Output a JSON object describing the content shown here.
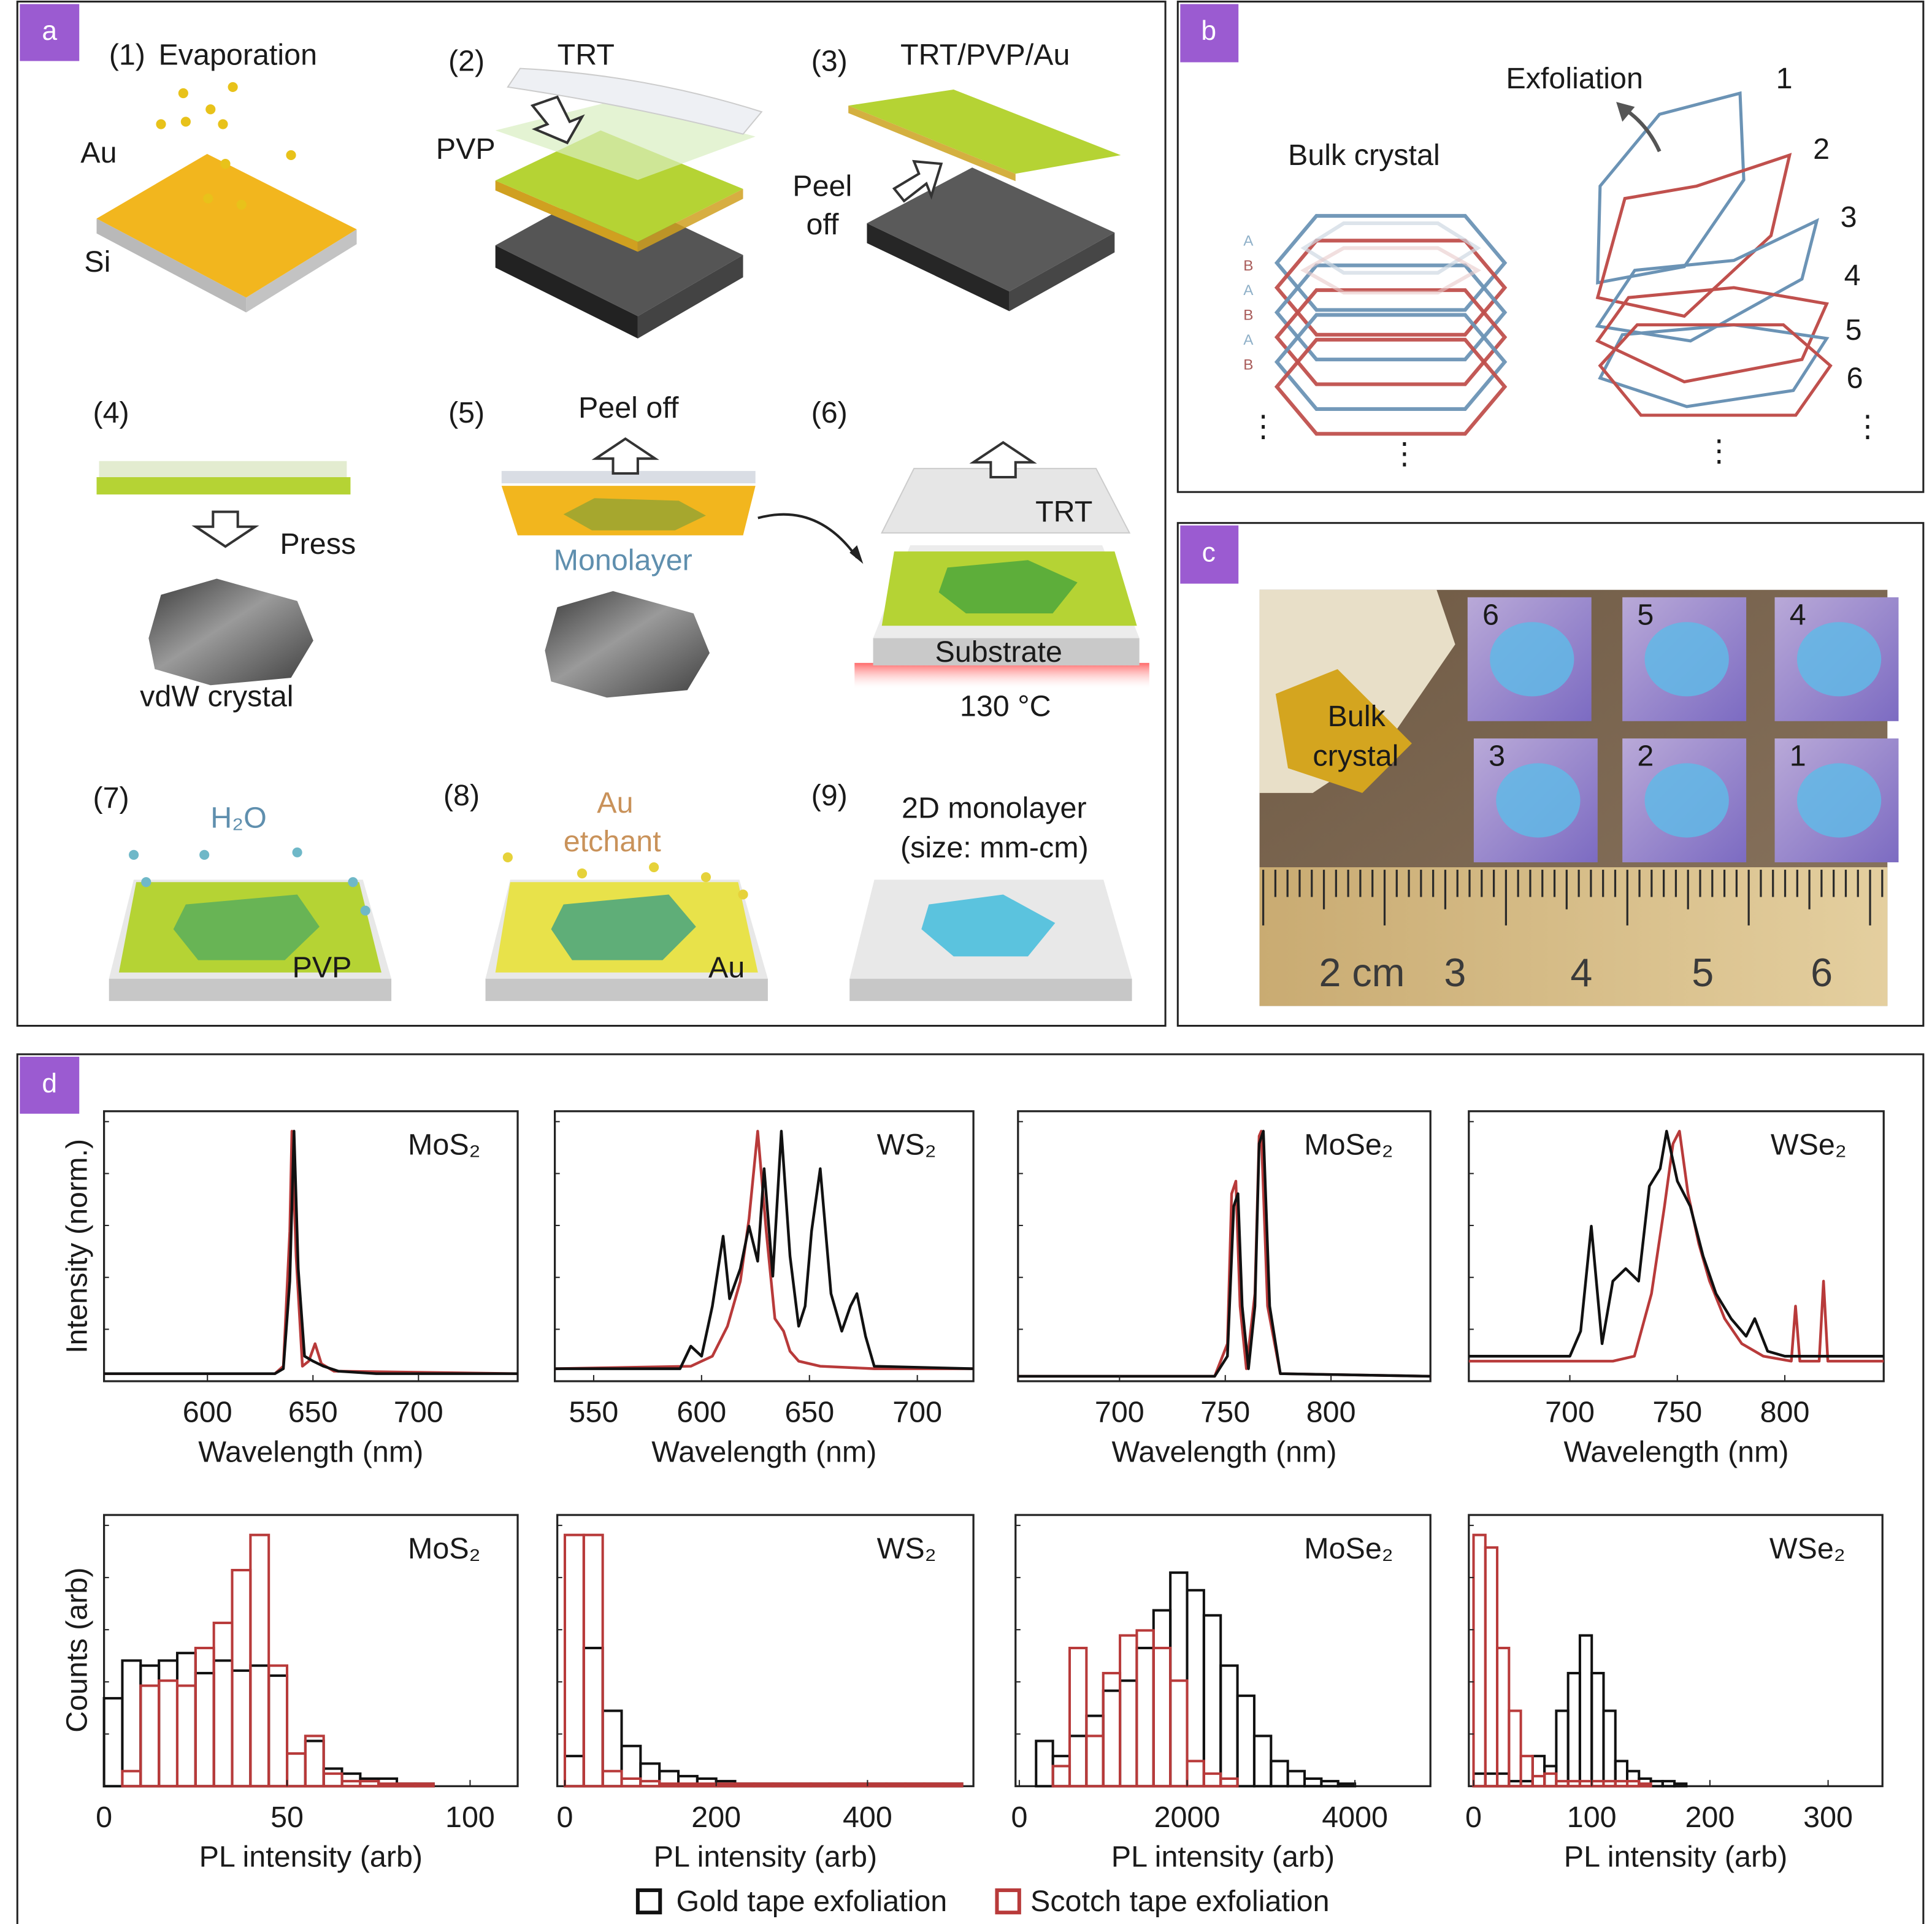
{
  "colors": {
    "panel_label_bg": "#9b5bd1",
    "gold_series": "#111111",
    "scotch_series": "#b83a3a",
    "au": "#f2b61e",
    "pvp": "#b5d334",
    "monolayer": "#5bc3de",
    "layer_a": "#6b93b5",
    "layer_b": "#c0504d"
  },
  "panel_a": {
    "label": "a",
    "steps": [
      {
        "num": "(1)",
        "title": "Evaporation",
        "labels": [
          "Au",
          "Si"
        ]
      },
      {
        "num": "(2)",
        "title": "TRT",
        "labels": [
          "PVP"
        ]
      },
      {
        "num": "(3)",
        "title": "TRT/PVP/Au",
        "labels": [
          "Peel",
          "off"
        ]
      },
      {
        "num": "(4)",
        "title": "",
        "labels": [
          "Press",
          "vdW crystal"
        ]
      },
      {
        "num": "(5)",
        "title": "Peel off",
        "labels": [
          "Monolayer"
        ]
      },
      {
        "num": "(6)",
        "title": "",
        "labels": [
          "TRT",
          "Substrate",
          "130 °C"
        ]
      },
      {
        "num": "(7)",
        "title": "H₂O",
        "labels": [
          "PVP"
        ]
      },
      {
        "num": "(8)",
        "title": "Au",
        "labels": [
          "etchant",
          "Au"
        ]
      },
      {
        "num": "(9)",
        "title": "2D monolayer",
        "labels": [
          "(size: mm-cm)"
        ]
      }
    ]
  },
  "panel_b": {
    "label": "b",
    "bulk_title": "Bulk crystal",
    "exfoliation_title": "Exfoliation",
    "stacking": [
      "A",
      "B",
      "A",
      "B",
      "A",
      "B"
    ],
    "layer_numbers": [
      "1",
      "2",
      "3",
      "4",
      "5",
      "6"
    ],
    "ellipsis": "⋮"
  },
  "panel_c": {
    "label": "c",
    "bulk_label": [
      "Bulk",
      "crystal"
    ],
    "sample_numbers": [
      "6",
      "5",
      "4",
      "3",
      "2",
      "1"
    ],
    "ruler_labels": [
      "2 cm",
      "3",
      "4",
      "5",
      "6"
    ]
  },
  "panel_d": {
    "label": "d",
    "legend": [
      {
        "name": "Gold tape exfoliation",
        "color": "#111111"
      },
      {
        "name": "Scotch tape exfoliation",
        "color": "#b83a3a"
      }
    ]
  },
  "chart_data": [
    {
      "type": "line",
      "title": "MoS₂",
      "xlabel": "Wavelength (nm)",
      "ylabel": "Intensity (norm.)",
      "xlim": [
        551,
        747
      ],
      "ylim": [
        0,
        1.05
      ],
      "xticks": [
        600,
        650,
        700
      ],
      "series": [
        {
          "name": "Gold tape exfoliation",
          "x": [
            551,
            600,
            632,
            636,
            639,
            641,
            643,
            646,
            650,
            655,
            662,
            680,
            747
          ],
          "y": [
            0.03,
            0.03,
            0.03,
            0.05,
            0.4,
            1.0,
            0.45,
            0.1,
            0.08,
            0.06,
            0.04,
            0.03,
            0.03
          ]
        },
        {
          "name": "Scotch tape exfoliation",
          "x": [
            551,
            600,
            632,
            636,
            639,
            640,
            642,
            645,
            648,
            651,
            654,
            660,
            747
          ],
          "y": [
            0.03,
            0.03,
            0.03,
            0.06,
            0.6,
            1.0,
            0.5,
            0.06,
            0.08,
            0.15,
            0.07,
            0.04,
            0.03
          ]
        }
      ]
    },
    {
      "type": "line",
      "title": "WS₂",
      "xlabel": "Wavelength (nm)",
      "xlim": [
        532,
        726
      ],
      "ylim": [
        0,
        1.05
      ],
      "xticks": [
        550,
        600,
        650,
        700
      ],
      "series": [
        {
          "name": "Gold tape exfoliation",
          "x": [
            532,
            590,
            595,
            600,
            605,
            610,
            613,
            618,
            622,
            626,
            629,
            633,
            637,
            641,
            645,
            648,
            651,
            655,
            660,
            665,
            669,
            672,
            676,
            680,
            726
          ],
          "y": [
            0.05,
            0.05,
            0.14,
            0.1,
            0.3,
            0.58,
            0.33,
            0.45,
            0.62,
            0.48,
            0.85,
            0.42,
            1.0,
            0.5,
            0.22,
            0.3,
            0.6,
            0.85,
            0.35,
            0.2,
            0.3,
            0.35,
            0.18,
            0.06,
            0.05
          ]
        },
        {
          "name": "Scotch tape exfoliation",
          "x": [
            532,
            595,
            605,
            612,
            618,
            622,
            626,
            630,
            634,
            638,
            641,
            645,
            655,
            680,
            726
          ],
          "y": [
            0.05,
            0.06,
            0.1,
            0.22,
            0.4,
            0.65,
            1.0,
            0.6,
            0.25,
            0.2,
            0.12,
            0.08,
            0.06,
            0.05,
            0.05
          ]
        }
      ]
    },
    {
      "type": "line",
      "title": "MoSe₂",
      "xlabel": "Wavelength (nm)",
      "xlim": [
        652,
        847
      ],
      "ylim": [
        0,
        1.05
      ],
      "xticks": [
        700,
        750,
        800
      ],
      "series": [
        {
          "name": "Gold tape exfoliation",
          "x": [
            652,
            745,
            751,
            754,
            756,
            758,
            761,
            764,
            766,
            768,
            771,
            776,
            847
          ],
          "y": [
            0.02,
            0.02,
            0.1,
            0.7,
            0.75,
            0.3,
            0.05,
            0.3,
            0.95,
            1.0,
            0.3,
            0.03,
            0.02
          ]
        },
        {
          "name": "Scotch tape exfoliation",
          "x": [
            652,
            745,
            751,
            753,
            755,
            757,
            760,
            764,
            766,
            767,
            770,
            776,
            847
          ],
          "y": [
            0.02,
            0.02,
            0.15,
            0.75,
            0.8,
            0.3,
            0.05,
            0.35,
            0.98,
            1.0,
            0.3,
            0.03,
            0.02
          ]
        }
      ]
    },
    {
      "type": "line",
      "title": "WSe₂",
      "xlabel": "Wavelength (nm)",
      "xlim": [
        653,
        846
      ],
      "ylim": [
        0,
        1.05
      ],
      "xticks": [
        700,
        750,
        800
      ],
      "series": [
        {
          "name": "Gold tape exfoliation",
          "x": [
            653,
            700,
            705,
            710,
            715,
            720,
            726,
            732,
            737,
            742,
            745,
            750,
            756,
            762,
            768,
            775,
            782,
            786,
            792,
            800,
            846
          ],
          "y": [
            0.1,
            0.1,
            0.2,
            0.62,
            0.15,
            0.4,
            0.45,
            0.4,
            0.78,
            0.85,
            1.0,
            0.8,
            0.7,
            0.5,
            0.35,
            0.25,
            0.18,
            0.25,
            0.12,
            0.1,
            0.1
          ]
        },
        {
          "name": "Scotch tape exfoliation",
          "x": [
            653,
            720,
            730,
            738,
            744,
            748,
            751,
            755,
            760,
            765,
            772,
            780,
            790,
            803,
            805,
            807,
            816,
            818,
            820,
            846
          ],
          "y": [
            0.08,
            0.08,
            0.1,
            0.35,
            0.7,
            0.95,
            1.0,
            0.75,
            0.55,
            0.4,
            0.25,
            0.15,
            0.1,
            0.08,
            0.3,
            0.08,
            0.08,
            0.4,
            0.08,
            0.08
          ]
        }
      ]
    },
    {
      "type": "bar",
      "title": "MoS₂",
      "xlabel": "PL intensity (arb)",
      "ylabel": "Counts (arb)",
      "xlim": [
        0,
        113
      ],
      "ylim": [
        0,
        1.05
      ],
      "xticks": [
        0,
        50,
        100
      ],
      "bin_width": 5,
      "series": [
        {
          "name": "Gold tape exfoliation",
          "bin_start": 0,
          "values": [
            0.35,
            0.5,
            0.48,
            0.5,
            0.53,
            0.45,
            0.5,
            0.46,
            0.48,
            0.44,
            0.13,
            0.18,
            0.07,
            0.05,
            0.03,
            0.03,
            0.01,
            0.01
          ]
        },
        {
          "name": "Scotch tape exfoliation",
          "bin_start": 0,
          "values": [
            0.0,
            0.06,
            0.4,
            0.42,
            0.4,
            0.55,
            0.65,
            0.86,
            1.0,
            0.48,
            0.13,
            0.2,
            0.05,
            0.02,
            0.02,
            0.01,
            0.01,
            0.01
          ]
        }
      ]
    },
    {
      "type": "bar",
      "title": "WS₂",
      "xlabel": "PL intensity (arb)",
      "xlim": [
        -10,
        540
      ],
      "ylim": [
        0,
        1.05
      ],
      "xticks": [
        0,
        200,
        400
      ],
      "bin_width": 25,
      "series": [
        {
          "name": "Gold tape exfoliation",
          "bin_start": 0,
          "values": [
            0.12,
            0.55,
            0.3,
            0.16,
            0.09,
            0.06,
            0.04,
            0.03,
            0.02,
            0.01,
            0.01,
            0.01,
            0.01,
            0.01,
            0.01,
            0.01,
            0.01,
            0.01,
            0.01,
            0.01,
            0.01
          ]
        },
        {
          "name": "Scotch tape exfoliation",
          "bin_start": 0,
          "values": [
            1.0,
            1.0,
            0.06,
            0.03,
            0.02,
            0.01,
            0.01,
            0.01,
            0.01,
            0.01,
            0.01,
            0.01,
            0.01,
            0.01,
            0.01,
            0.01,
            0.01,
            0.01,
            0.01,
            0.01,
            0.01
          ]
        }
      ]
    },
    {
      "type": "bar",
      "title": "MoSe₂",
      "xlabel": "PL intensity (arb)",
      "xlim": [
        -45,
        4900
      ],
      "ylim": [
        0,
        1.05
      ],
      "xticks": [
        0,
        2000,
        4000
      ],
      "bin_width": 200,
      "series": [
        {
          "name": "Gold tape exfoliation",
          "bin_start": 200,
          "values": [
            0.18,
            0.12,
            0.2,
            0.28,
            0.38,
            0.42,
            0.55,
            0.7,
            0.85,
            0.78,
            0.68,
            0.48,
            0.36,
            0.2,
            0.1,
            0.06,
            0.03,
            0.02,
            0.01
          ]
        },
        {
          "name": "Scotch tape exfoliation",
          "bin_start": 400,
          "values": [
            0.08,
            0.55,
            0.2,
            0.45,
            0.6,
            0.62,
            0.55,
            0.42,
            0.1,
            0.05,
            0.03
          ]
        }
      ]
    },
    {
      "type": "bar",
      "title": "WSe₂",
      "xlabel": "PL intensity (arb)",
      "xlim": [
        -4,
        346
      ],
      "ylim": [
        0,
        1.05
      ],
      "xticks": [
        0,
        100,
        200,
        300
      ],
      "bin_width": 10,
      "series": [
        {
          "name": "Gold tape exfoliation",
          "bin_start": 0,
          "values": [
            0.05,
            0.05,
            0.05,
            0.02,
            0.02,
            0.12,
            0.08,
            0.3,
            0.45,
            0.6,
            0.45,
            0.3,
            0.1,
            0.06,
            0.03,
            0.02,
            0.02,
            0.01
          ]
        },
        {
          "name": "Scotch tape exfoliation",
          "bin_start": 0,
          "values": [
            1.0,
            0.95,
            0.55,
            0.3,
            0.12,
            0.04,
            0.05,
            0.02,
            0.02,
            0.02,
            0.02,
            0.02,
            0.02,
            0.02,
            0.01
          ]
        }
      ]
    }
  ]
}
